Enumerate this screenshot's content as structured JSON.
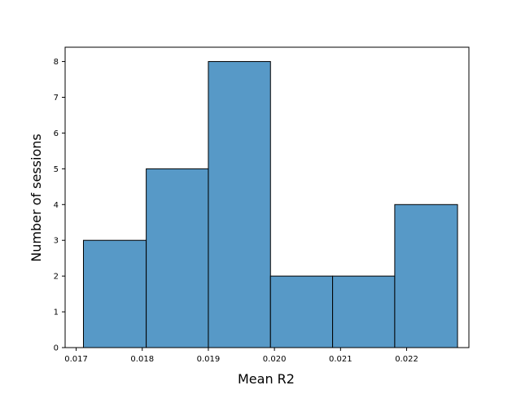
{
  "chart_data": {
    "type": "bar",
    "subtype": "histogram",
    "title": "",
    "xlabel": "Mean R2",
    "ylabel": "Number of sessions",
    "bins": [
      {
        "start": 0.01711,
        "end": 0.01806,
        "count": 3
      },
      {
        "start": 0.01806,
        "end": 0.019,
        "count": 5
      },
      {
        "start": 0.019,
        "end": 0.01994,
        "count": 8
      },
      {
        "start": 0.01994,
        "end": 0.02088,
        "count": 2
      },
      {
        "start": 0.02088,
        "end": 0.02182,
        "count": 2
      },
      {
        "start": 0.02182,
        "end": 0.02277,
        "count": 4
      }
    ],
    "xlim": [
      0.016833,
      0.022942
    ],
    "ylim": [
      0,
      8.4
    ],
    "x_ticks": [
      0.017,
      0.018,
      0.019,
      0.02,
      0.021,
      0.022
    ],
    "x_tick_labels": [
      "0.017",
      "0.018",
      "0.019",
      "0.020",
      "0.021",
      "0.022"
    ],
    "y_ticks": [
      0,
      1,
      2,
      3,
      4,
      5,
      6,
      7,
      8
    ],
    "y_tick_labels": [
      "0",
      "1",
      "2",
      "3",
      "4",
      "5",
      "6",
      "7",
      "8"
    ],
    "grid": false,
    "legend": false,
    "colors": {
      "bar_fill": "#5799c7",
      "bar_edge": "#000000",
      "axes": "#000000",
      "background": "#ffffff"
    }
  }
}
